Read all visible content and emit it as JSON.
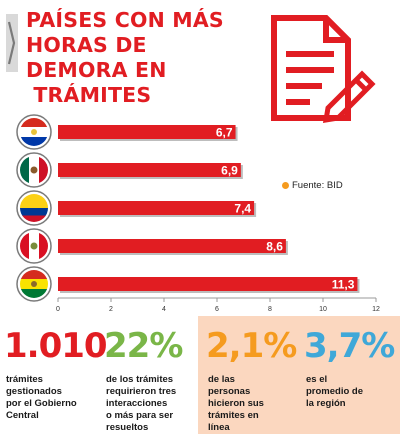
{
  "title_lines": [
    "PAÍSES CON MÁS",
    "HORAS DE",
    "DEMORA EN",
    " TRÁMITES"
  ],
  "source_label": "Fuente: BID",
  "colors": {
    "accent": "#e11d22",
    "peach": "#fbd7bf",
    "green": "#7ab648",
    "orange": "#f59b1f",
    "teal": "#3fa8d8",
    "axis": "#999999"
  },
  "chart_data": {
    "type": "bar",
    "orientation": "horizontal",
    "categories": [
      "Paraguay",
      "Mexico",
      "Colombia",
      "Peru",
      "Bolivia"
    ],
    "values": [
      6.7,
      6.9,
      7.4,
      8.6,
      11.3
    ],
    "value_labels": [
      "6,7",
      "6,9",
      "7,4",
      "8,6",
      "11,3"
    ],
    "xlim": [
      0,
      12
    ],
    "xticks": [
      0,
      2,
      4,
      6,
      8,
      10,
      12
    ],
    "icons": [
      "paraguay-flag-icon",
      "mexico-flag-icon",
      "colombia-flag-icon",
      "peru-flag-icon",
      "bolivia-flag-icon"
    ],
    "title": "",
    "xlabel": "",
    "ylabel": ""
  },
  "stats": [
    {
      "value": "1.010",
      "lines": [
        "trámites",
        "gestionados",
        "por el Gobierno",
        "Central"
      ],
      "color": "#e11d22"
    },
    {
      "value": "22%",
      "lines": [
        "de los trámites",
        "requirieron tres",
        "interacciones",
        "o más para ser",
        "resueltos"
      ],
      "color": "#7ab648"
    },
    {
      "value": "2,1%",
      "lines": [
        "de las",
        "personas",
        "hicieron sus",
        "trámites en",
        "línea"
      ],
      "color": "#f59b1f"
    },
    {
      "value": "3,7%",
      "lines": [
        "es el",
        "promedio de",
        "la región"
      ],
      "color": "#3fa8d8"
    }
  ]
}
